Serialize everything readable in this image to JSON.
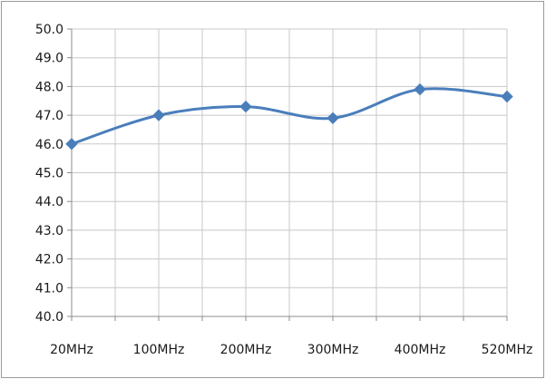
{
  "chart_data": {
    "type": "line",
    "title": "",
    "xlabel": "",
    "ylabel": "",
    "categories": [
      "20MHz",
      "100MHz",
      "200MHz",
      "300MHz",
      "400MHz",
      "520MHz"
    ],
    "series": [
      {
        "values": [
          46.0,
          47.0,
          47.3,
          46.9,
          47.9,
          47.65
        ],
        "color": "#4a7ebb",
        "marker": "diamond",
        "smooth": true
      }
    ],
    "ylim": [
      40.0,
      50.0
    ],
    "yticks": [
      "40.0",
      "41.0",
      "42.0",
      "43.0",
      "44.0",
      "45.0",
      "46.0",
      "47.0",
      "48.0",
      "49.0",
      "50.0"
    ],
    "grid": true,
    "legend": "none"
  }
}
